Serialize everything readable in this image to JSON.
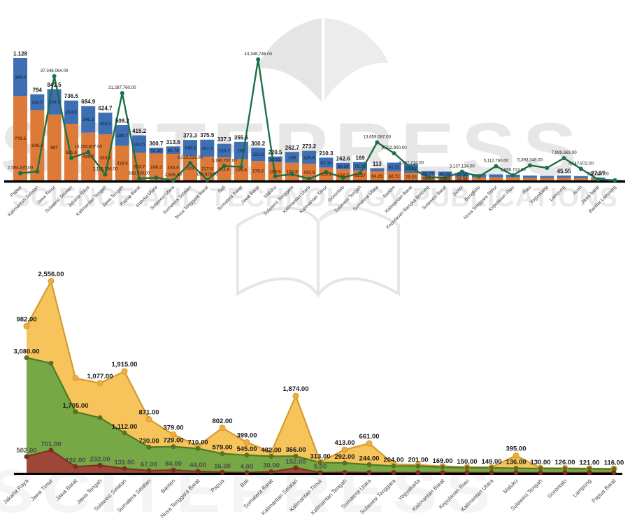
{
  "watermark": {
    "line1": "SCITEPRESS",
    "line2": "SCIENCE AND TECHNOLOGY PUBLICATIONS",
    "line3": "SCITEPRESS"
  },
  "colors": {
    "bar_orange": "#DD7A37",
    "bar_blue": "#3E6FB3",
    "line_green": "#1B7145",
    "label_on_blue": "#17375E",
    "label_on_orange": "#6B2E0F",
    "label_dark": "#1A1A1A",
    "label_gray": "#4D4D4D",
    "tick_gray": "#3D3D3D",
    "axis_black": "#000000",
    "watermark_gray": "#E7E7E7"
  },
  "chart_data": [
    {
      "type": "bar",
      "subtype": "stacked-bars-with-line",
      "title": "",
      "xlabel": "",
      "ylabel": "",
      "grid": false,
      "legend": false,
      "ylim_bars": [
        0,
        1150
      ],
      "ylim_line": [
        0,
        45000000
      ],
      "categories": [
        "Papua",
        "Kalimantan Selatan",
        "Jawa Timur",
        "Sulawesi Selatan",
        "Jakarta Raya",
        "Kalimantan Tengah",
        "Jawa Tengah",
        "Papua Barat",
        "Maluku Utara",
        "Sulawesi Utara",
        "Sumatera Selatan",
        "Nusa Tenggara Barat",
        "Bali",
        "Sumatera Barat",
        "Jawa Barat",
        "Maluku",
        "Sulawesi Tenggara",
        "Kalimantan Utara",
        "Kalimantan Timur",
        "Gorontalo",
        "Sulawesi Tengah",
        "Sumatera Utara",
        "Banten",
        "Kalimantan Barat",
        "Kepulauan Bangka Belitung",
        "Sulawesi Barat",
        "Jambi",
        "Bengkulu",
        "Nusa Tenggara Timur",
        "Kepulauan Riau",
        "Riau",
        "Yogyakarta",
        "Lampung",
        "Aceh",
        "Jawa barat",
        "Bandar Lampung"
      ],
      "total_labels": [
        "1.128",
        "794",
        "841.5",
        "736.5",
        "684.9",
        "624.7",
        "509.2",
        "415.2",
        "300.7",
        "313.6",
        "373.3",
        "375.5",
        "337.3",
        "355.6",
        "300.2",
        "220.5",
        "262.7",
        "273.2",
        "210.3",
        "162.6",
        "169",
        "113",
        null,
        null,
        null,
        null,
        null,
        null,
        null,
        null,
        null,
        null,
        "45.55",
        null,
        "27.37",
        null
      ],
      "series": [
        {
          "name": "orange-bottom-segment",
          "type": "bar",
          "color": "#DD7A37",
          "values": [
            778.5,
            648.4,
            607,
            521.6,
            439.7,
            424.5,
            319.5,
            253.7,
            248.3,
            244.8,
            228,
            217.8,
            211.6,
            195.6,
            178.6,
            166.9,
            162.6,
            152.6,
            118.2,
            102.2,
            93.27,
            84.29,
            82.72,
            70.23,
            40.64,
            38.08,
            33.56,
            29.06,
            28.08,
            27.06,
            23.1,
            21,
            23.1,
            20,
            14,
            1.6
          ],
          "labels": [
            "778.5",
            "648.4",
            "607",
            "521.6",
            "439.7",
            "424.5",
            "319.5",
            "253.7",
            "248.3",
            "244.8",
            "228",
            "217.8",
            "211.6",
            "195.6",
            "178.6",
            "166.9",
            "162.6",
            "152.6",
            "118.2",
            "102.2",
            "93.27",
            "84.29",
            "82.72",
            "70.23",
            "40.64",
            "38.08",
            "33.56",
            null,
            null,
            null,
            null,
            null,
            null,
            null,
            null,
            null
          ]
        },
        {
          "name": "blue-top-segment",
          "type": "bar",
          "color": "#3E6FB3",
          "values": [
            349.4,
            145.7,
            234.5,
            214.9,
            245.2,
            200.2,
            189.7,
            161.5,
            52.4,
            68.78,
            145.3,
            157.7,
            125.7,
            160,
            121.6,
            53.61,
            100,
            120.6,
            92.1,
            60.39,
            75.73,
            28.7,
            81.52,
            81.02,
            45.77,
            43.26,
            33.06,
            28.06,
            27.05,
            26.05,
            22.04,
            21.03,
            22.45,
            20.02,
            13.37,
            1.5
          ],
          "labels": [
            "349.4",
            "145.7",
            "234.5",
            "214.9",
            "245.2",
            "200.2",
            "189.7",
            "161.5",
            "52.40",
            "68.78",
            "145.3",
            "157.7",
            "125.7",
            "160",
            "121.6",
            "53.61",
            "100",
            "120.6",
            "92.10",
            "60.39",
            "75.73",
            null,
            "81.52",
            "81.02",
            "45.77",
            "43.26",
            "33.06",
            null,
            null,
            null,
            null,
            null,
            null,
            null,
            null,
            null
          ]
        },
        {
          "name": "green-line",
          "type": "line",
          "color": "#1B7145",
          "values": [
            2584325,
            3200000,
            37348064,
            8060000,
            10154607,
            2115196,
            31287760,
            638730,
            1000000,
            2506,
            6213521,
            189829,
            5190707,
            4850000,
            43346746,
            1500000,
            2200000,
            600000,
            3000000,
            1000000,
            2600000,
            13659087,
            9752900,
            4367714,
            1200000,
            900000,
            3137134,
            1400000,
            5112760,
            1868713,
            5393349,
            4500000,
            7999669,
            4147872,
            372567,
            50000
          ],
          "labels": [
            "2,584,325.00",
            null,
            "37,348,064.00",
            null,
            "10,154,607.00",
            "2,115,196.00",
            "31,287,760.00",
            "638,730.00",
            null,
            "2,506.00",
            "6,213,521.00",
            "189,829.00",
            "5,190,707.00",
            null,
            "43,346,746.00",
            null,
            null,
            null,
            null,
            null,
            null,
            "13,659,087.00",
            "9,752,900.00",
            "4,367,714.00",
            null,
            null,
            "3,137,134.00",
            null,
            "5,112,760.00",
            "1,868,713.00",
            "5,393,349.00",
            null,
            "7,999,669.00",
            "4,147,872.00",
            "372,567.00",
            null
          ]
        }
      ]
    },
    {
      "type": "area",
      "subtype": "stacked-area",
      "title": "",
      "xlabel": "",
      "ylabel": "",
      "grid": false,
      "legend": false,
      "ylim": [
        0,
        6000
      ],
      "categories": [
        "Jakarta Raya",
        "Jawa Timur",
        "Jawa Barat",
        "Jawa Tengah",
        "Sulawesi Selatan",
        "Sumatera Selatan",
        "Banten",
        "Nusa Tenggara Barat",
        "Papua",
        "Bali",
        "Sumatera Barat",
        "Kalimantan Selatan",
        "Kalimantan Timur",
        "Kalimantan Tengah",
        "Sumatera Utara",
        "Sulawesi Tenggara",
        "Yogyakarta",
        "Kalimantan Barat",
        "Kepulauan Riau",
        "Kalimantan Utara",
        "Maluku",
        "Sulawesi Tengah",
        "Gorontalo",
        "Lampung",
        "Papua Barat"
      ],
      "series": [
        {
          "name": "red-area",
          "fill": "#9E4637",
          "stroke": "#7C2D20",
          "marker": "#6E received2115",
          "values": [
            502,
            701,
            192,
            232,
            131,
            67,
            84,
            44,
            16,
            4,
            30,
            152,
            5,
            12,
            9,
            7,
            6,
            5,
            5,
            4,
            4,
            3,
            3,
            2,
            2
          ],
          "labels": [
            "502.00",
            "701.00",
            "192.00",
            "232.00",
            "131.00",
            "67.00",
            "84.00",
            "44.00",
            "16.00",
            "4.00",
            "30.00",
            "152.00",
            "5.00",
            null,
            null,
            null,
            null,
            null,
            null,
            null,
            null,
            null,
            null,
            null,
            null
          ],
          "label_color": "#4D4D4D"
        },
        {
          "name": "green-area",
          "fill": "#76A845",
          "stroke": "#4F7A23",
          "marker": "#5C701F",
          "values": [
            3080,
            2710,
            1705,
            1480,
            1112,
            730,
            729,
            710,
            579,
            545,
            482,
            366,
            313,
            292,
            244,
            204,
            201,
            169,
            150,
            149,
            136,
            130,
            126,
            121,
            116
          ],
          "labels": [
            "3,080.00",
            null,
            "1,705.00",
            null,
            "1,112.00",
            "730.00",
            "729.00",
            "710.00",
            "579.00",
            "545.00",
            "482.00",
            "366.00",
            "313.00",
            "292.00",
            "244.00",
            "204.00",
            "201.00",
            "169.00",
            "150.00",
            "149.00",
            "136.00",
            "130.00",
            "126.00",
            "121.00",
            "116.00"
          ],
          "label_color": "#1A1A1A"
        },
        {
          "name": "yellow-area",
          "fill": "#F6C45A",
          "stroke": "#D79A2D",
          "marker": "#EDAE3E",
          "values": [
            982,
            2556,
            1050,
            1077,
            1915,
            871,
            379,
            80,
            802,
            399,
            130,
            1874,
            25,
            413,
            661,
            60,
            40,
            28,
            22,
            18,
            395,
            15,
            12,
            10,
            8
          ],
          "labels": [
            "982.00",
            "2,556.00",
            null,
            "1,077.00",
            "1,915.00",
            "871.00",
            "379.00",
            null,
            "802.00",
            "399.00",
            null,
            "1,874.00",
            null,
            "413.00",
            "661.00",
            null,
            null,
            null,
            null,
            null,
            "395.00",
            null,
            null,
            null,
            null
          ],
          "label_color": "#1A1A1A"
        }
      ]
    }
  ]
}
